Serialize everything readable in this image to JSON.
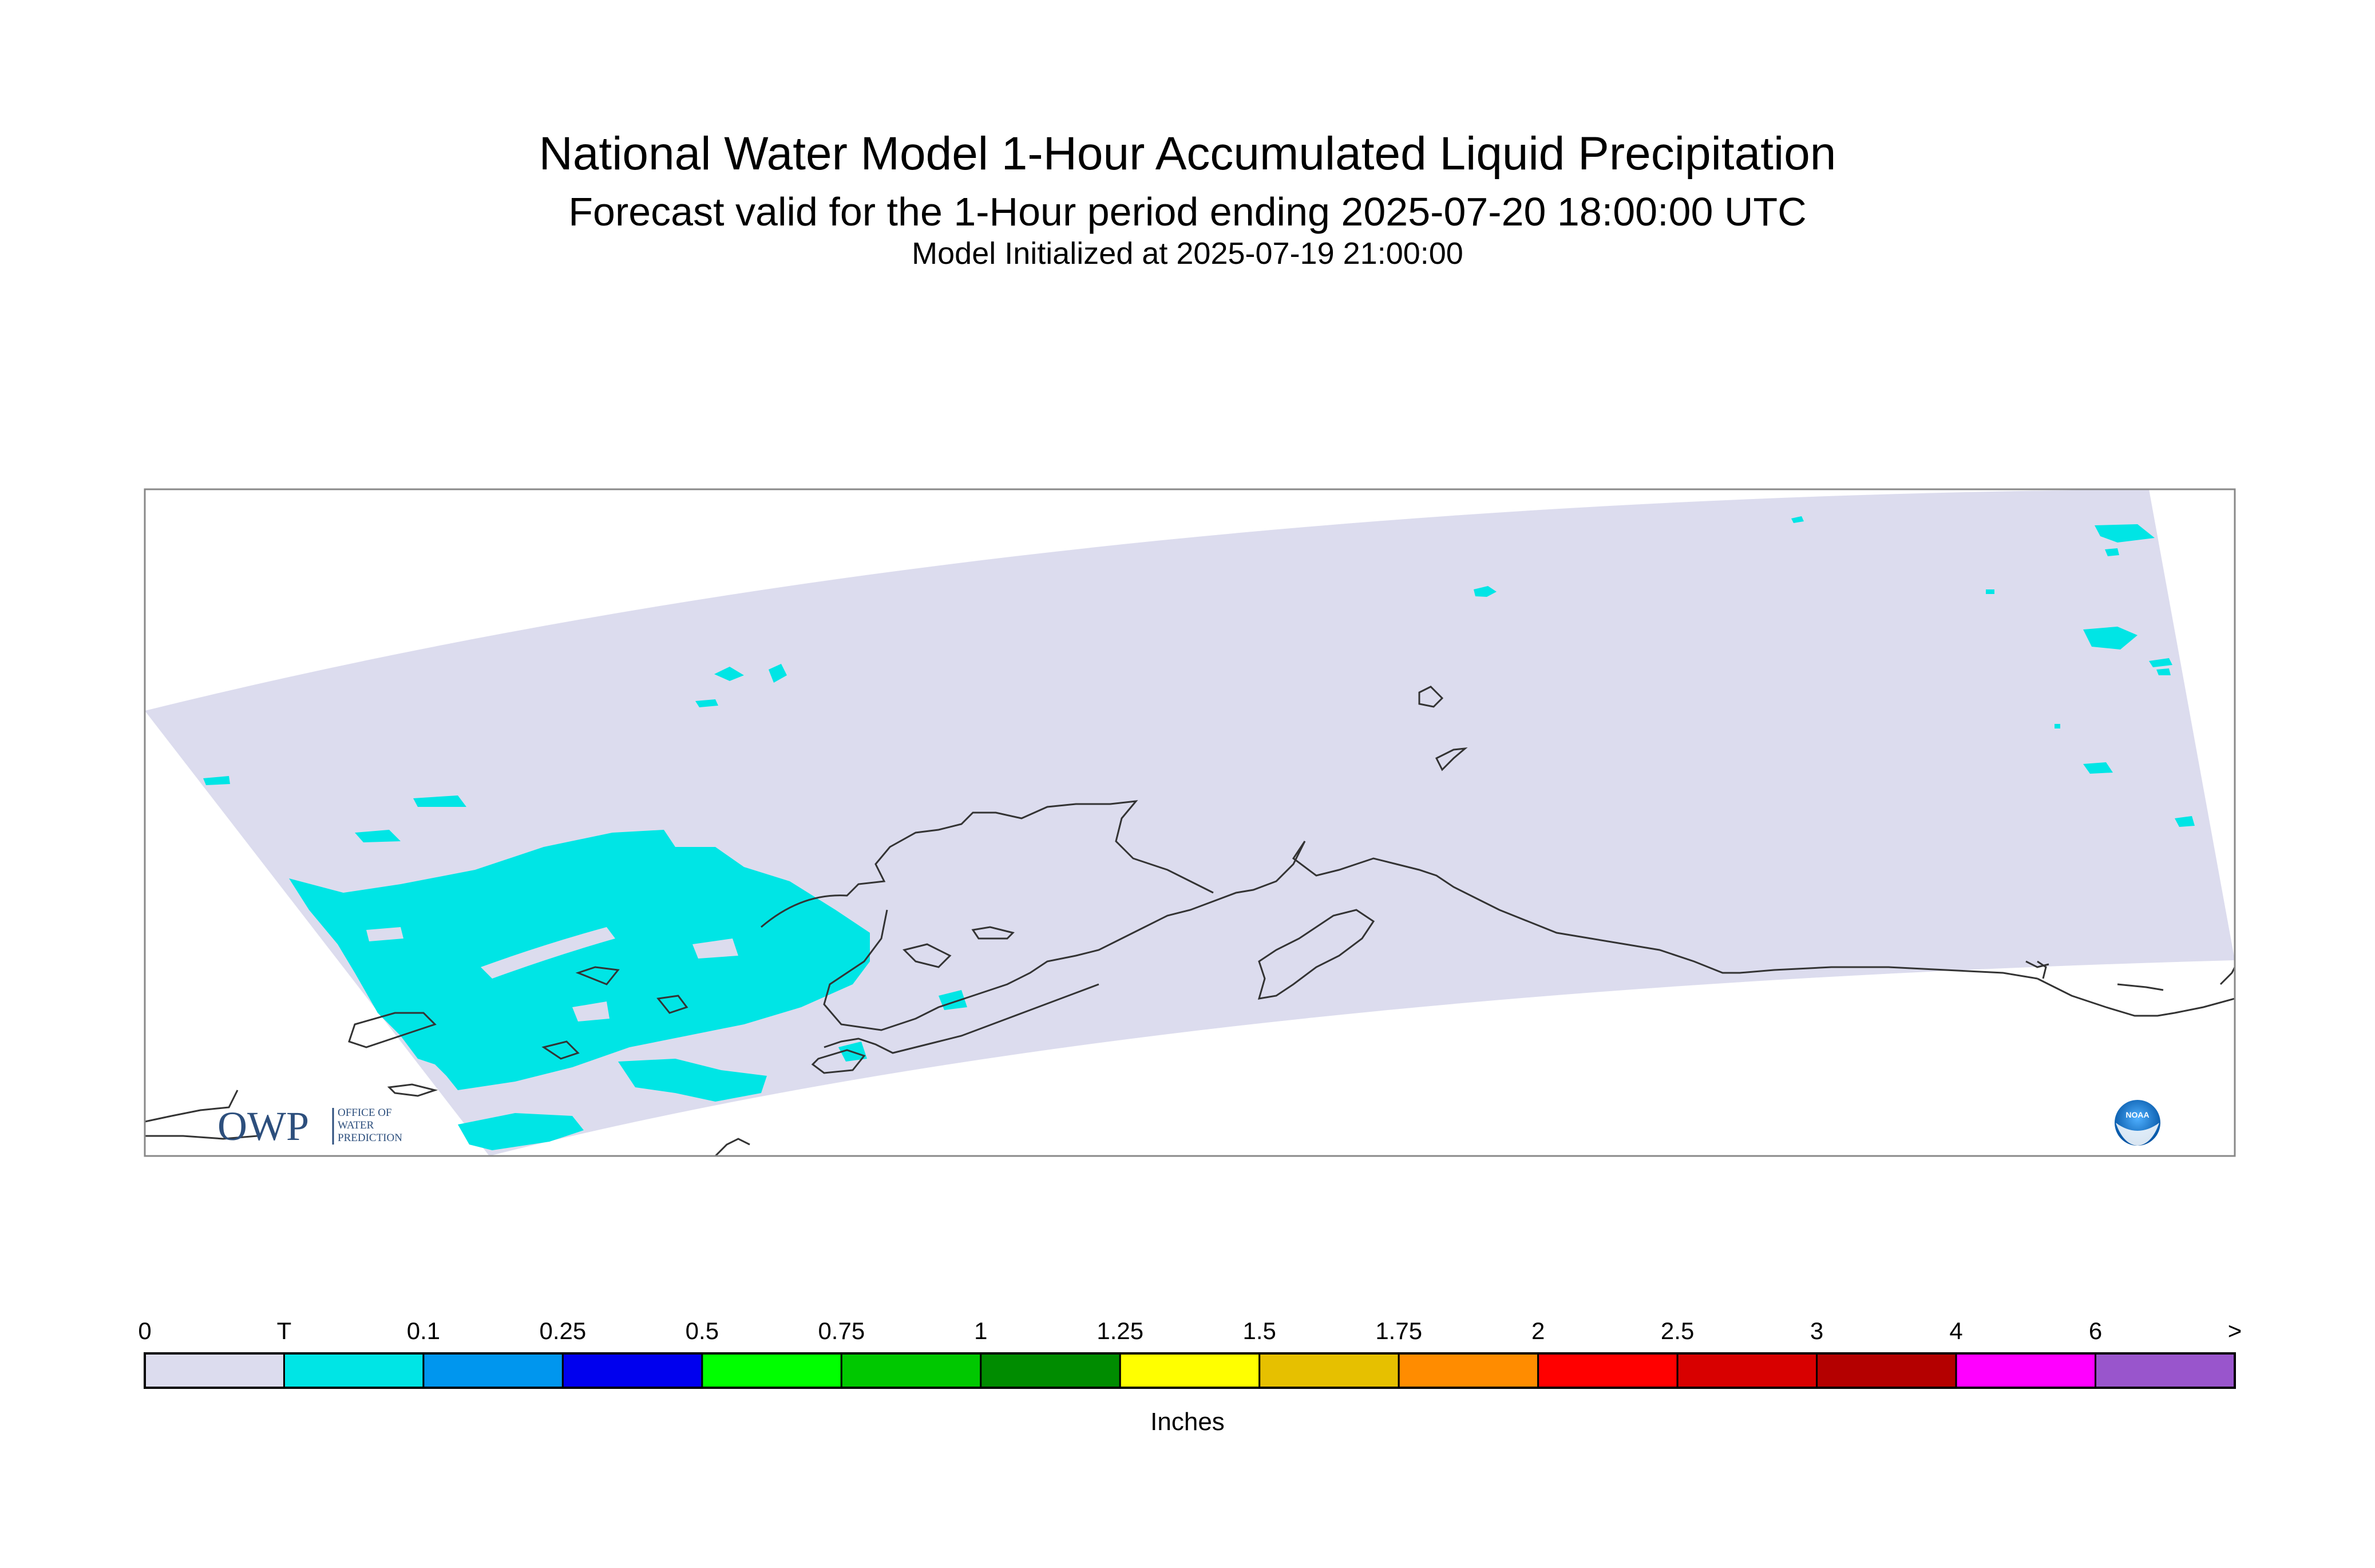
{
  "title": "National Water Model 1-Hour Accumulated Liquid Precipitation",
  "subtitle": "Forecast valid for the 1-Hour period ending 2025-07-20 18:00:00 UTC",
  "init_line": "Model Initialized at 2025-07-19 21:00:00",
  "logos": {
    "owp_text": "OWP",
    "owp_side_text": [
      "OFFICE OF",
      "WATER",
      "PREDICTION"
    ],
    "noaa_text": "NOAA"
  },
  "legend": {
    "ticks": [
      "0",
      "T",
      "0.1",
      "0.25",
      "0.5",
      "0.75",
      "1",
      "1.25",
      "1.5",
      "1.75",
      "2",
      "2.5",
      "3",
      "4",
      "6",
      ">"
    ],
    "colors": [
      "#dcdcee",
      "#00e5e5",
      "#0096ee",
      "#0000ee",
      "#00ff00",
      "#00c800",
      "#008c00",
      "#ffff00",
      "#e6c000",
      "#ff8c00",
      "#ff0000",
      "#d80000",
      "#b40000",
      "#ff00ff",
      "#9955cc"
    ],
    "units": "Inches"
  },
  "colors": {
    "domain_fill": "#dcdcee",
    "trace_precip": "#00e5e5",
    "coastline": "#333333",
    "frame": "#888888"
  }
}
